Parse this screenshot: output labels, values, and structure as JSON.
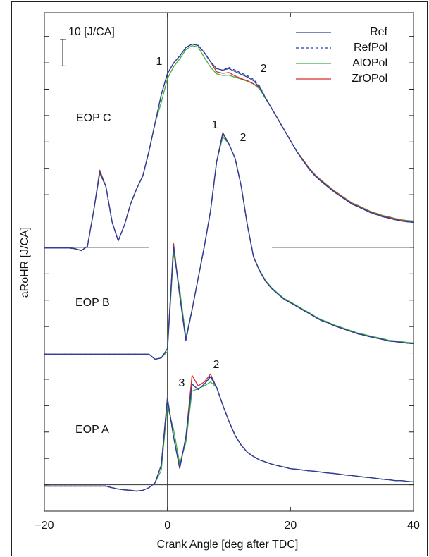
{
  "chart_data": {
    "type": "line",
    "xlabel": "Crank Angle [deg after TDC]",
    "ylabel": "aRoHR [J/CA]",
    "xlim": [
      -20,
      40
    ],
    "ylim": [
      -10,
      179
    ],
    "xticks": [
      {
        "value": -20,
        "label": "−20"
      },
      0,
      20,
      40
    ],
    "yticks": [
      0,
      10,
      20,
      30,
      40,
      50,
      60,
      70,
      80,
      90,
      100,
      110,
      120,
      130,
      140,
      150,
      160,
      170
    ],
    "legend": "upper right",
    "scale_bar": {
      "value": 10,
      "label": "10 [J/CA]"
    },
    "vlines": [
      0
    ],
    "hlines": [
      {
        "y": 90,
        "segments": [
          [
            -20,
            -3
          ],
          [
            17,
            40
          ]
        ]
      },
      {
        "y": 50,
        "segments": [
          [
            -20,
            40
          ]
        ]
      },
      {
        "y": 0,
        "segments": [
          [
            -20,
            40
          ]
        ]
      }
    ],
    "x": [
      -20,
      -19,
      -18,
      -17,
      -16,
      -15,
      -14,
      -13,
      -12,
      -11,
      -10,
      -9,
      -8,
      -7,
      -6,
      -5,
      -4,
      -3,
      -2,
      -1,
      0,
      1,
      2,
      3,
      4,
      5,
      6,
      7,
      8,
      9,
      10,
      11,
      12,
      13,
      14,
      15,
      16,
      17,
      18,
      19,
      20,
      21,
      22,
      23,
      24,
      25,
      26,
      27,
      28,
      29,
      30,
      31,
      32,
      33,
      34,
      35,
      36,
      37,
      38,
      39,
      40
    ],
    "series": [
      {
        "name": "Ref",
        "color": "#2b3f9e",
        "dashed": false
      },
      {
        "name": "RefPol",
        "color": "#2b3f9e",
        "dashed": true
      },
      {
        "name": "AlOPol",
        "color": "#3cb043",
        "dashed": false
      },
      {
        "name": "ZrOPol",
        "color": "#d62c2c",
        "dashed": false
      }
    ],
    "panels": [
      {
        "label": "EOP C",
        "annotations": [
          "1",
          "2"
        ],
        "values": [
          [
            89.8,
            89.8,
            89.8,
            89.8,
            89.8,
            89.5,
            88.8,
            90.4,
            103.7,
            118.5,
            113.1,
            99.7,
            92.5,
            98.4,
            106.4,
            112.3,
            117.1,
            126.5,
            137.2,
            147.9,
            155.9,
            159.9,
            162.6,
            165.8,
            167.1,
            166.6,
            163.9,
            160.4,
            157.8,
            157.2,
            157.8,
            156.7,
            155.6,
            154.6,
            153.2,
            150.6,
            146.5,
            142.5,
            138.5,
            134.5,
            130.5,
            126.5,
            123.0,
            119.8,
            117.1,
            115.0,
            113.1,
            111.2,
            109.6,
            108.0,
            106.4,
            105.4,
            104.3,
            103.2,
            102.4,
            101.6,
            101.1,
            100.5,
            100.0,
            99.7,
            99.5
          ],
          [
            89.8,
            89.8,
            89.8,
            89.8,
            89.8,
            89.5,
            88.8,
            90.4,
            103.7,
            118.5,
            113.1,
            99.7,
            92.5,
            98.4,
            106.4,
            112.3,
            117.1,
            126.5,
            137.2,
            147.9,
            155.9,
            159.9,
            162.6,
            165.8,
            167.1,
            166.6,
            163.9,
            160.4,
            157.8,
            157.2,
            158.3,
            157.2,
            156.1,
            155.1,
            153.7,
            151.1,
            146.5,
            142.5,
            138.5,
            134.5,
            130.5,
            126.5,
            123.0,
            119.8,
            117.1,
            115.0,
            113.1,
            111.2,
            109.6,
            108.0,
            106.4,
            105.4,
            104.3,
            103.2,
            102.4,
            101.6,
            101.1,
            100.5,
            100.0,
            99.7,
            99.5
          ],
          [
            89.8,
            89.8,
            89.8,
            89.8,
            89.8,
            89.5,
            88.8,
            90.4,
            103.7,
            118.0,
            113.1,
            99.7,
            92.5,
            98.4,
            106.4,
            112.3,
            117.1,
            126.5,
            137.2,
            145.0,
            154.0,
            158.5,
            161.5,
            165.0,
            166.5,
            166.0,
            162.0,
            158.4,
            155.8,
            155.2,
            155.3,
            154.5,
            153.8,
            153.0,
            152.0,
            150.0,
            146.2,
            142.5,
            138.5,
            134.5,
            130.5,
            126.5,
            123.5,
            120.3,
            117.6,
            115.5,
            113.6,
            111.7,
            110.1,
            108.5,
            106.9,
            105.9,
            104.8,
            103.7,
            102.9,
            102.1,
            101.6,
            101.0,
            100.5,
            100.2,
            100.0
          ],
          [
            89.8,
            89.8,
            89.8,
            89.8,
            89.8,
            89.5,
            88.8,
            90.4,
            103.7,
            119.3,
            113.1,
            99.7,
            92.5,
            98.4,
            106.4,
            112.3,
            117.1,
            126.5,
            137.2,
            147.9,
            155.9,
            159.9,
            162.6,
            165.8,
            167.1,
            166.6,
            163.9,
            160.4,
            156.6,
            156.0,
            156.3,
            155.0,
            154.0,
            153.2,
            152.0,
            150.6,
            146.5,
            142.5,
            138.5,
            134.5,
            130.5,
            126.5,
            123.3,
            120.1,
            117.4,
            115.3,
            113.4,
            111.5,
            109.9,
            108.3,
            106.7,
            105.7,
            104.6,
            103.5,
            102.7,
            101.9,
            101.4,
            100.8,
            100.3,
            100.0,
            99.8
          ]
        ]
      },
      {
        "label": "EOP B",
        "annotations": [
          "1",
          "2"
        ],
        "values": [
          [
            49.5,
            49.5,
            49.5,
            49.5,
            49.5,
            49.5,
            49.5,
            49.5,
            49.5,
            49.5,
            49.5,
            49.5,
            49.5,
            49.5,
            49.5,
            49.5,
            49.5,
            49.5,
            47.6,
            48.1,
            51.6,
            90.4,
            71.7,
            54.8,
            66.3,
            78.4,
            90.4,
            103.7,
            122.5,
            133.2,
            129.2,
            123.8,
            113.1,
            98.4,
            86.4,
            81.0,
            77.0,
            74.3,
            72.2,
            70.3,
            69.0,
            67.7,
            66.3,
            65.0,
            63.6,
            62.3,
            61.5,
            60.4,
            59.6,
            58.8,
            58.0,
            57.2,
            56.7,
            56.1,
            55.6,
            55.1,
            54.5,
            54.3,
            54.0,
            53.7,
            53.5
          ],
          [
            49.5,
            49.5,
            49.5,
            49.5,
            49.5,
            49.5,
            49.5,
            49.5,
            49.5,
            49.5,
            49.5,
            49.5,
            49.5,
            49.5,
            49.5,
            49.5,
            49.5,
            49.5,
            47.6,
            48.1,
            51.6,
            90.4,
            71.7,
            54.8,
            66.3,
            78.4,
            90.4,
            103.7,
            122.5,
            133.2,
            129.2,
            123.8,
            113.1,
            98.4,
            86.4,
            81.0,
            77.0,
            74.3,
            72.2,
            70.3,
            69.0,
            67.7,
            66.3,
            65.0,
            63.6,
            62.3,
            61.5,
            60.4,
            59.6,
            58.8,
            58.0,
            57.2,
            56.7,
            56.1,
            55.6,
            55.1,
            54.5,
            54.3,
            54.0,
            53.7,
            53.5
          ],
          [
            49.5,
            49.5,
            49.5,
            49.5,
            49.5,
            49.5,
            49.5,
            49.5,
            49.5,
            49.5,
            49.5,
            49.5,
            49.5,
            49.5,
            49.5,
            49.5,
            49.5,
            49.5,
            47.6,
            48.1,
            50.5,
            88.0,
            74.0,
            56.0,
            66.3,
            78.4,
            90.4,
            103.7,
            122.5,
            132.0,
            129.2,
            123.8,
            113.1,
            98.4,
            86.4,
            81.3,
            77.3,
            74.6,
            72.5,
            70.6,
            69.3,
            68.0,
            66.6,
            65.3,
            63.9,
            62.6,
            61.8,
            60.7,
            59.9,
            59.1,
            58.3,
            57.5,
            57.0,
            56.4,
            55.9,
            55.4,
            54.8,
            54.6,
            54.3,
            54.0,
            53.8
          ],
          [
            49.5,
            49.5,
            49.5,
            49.5,
            49.5,
            49.5,
            49.5,
            49.5,
            49.5,
            49.5,
            49.5,
            49.5,
            49.5,
            49.5,
            49.5,
            49.5,
            49.5,
            49.5,
            47.6,
            48.1,
            51.6,
            91.5,
            71.7,
            54.8,
            66.3,
            78.4,
            90.4,
            103.7,
            122.5,
            133.6,
            129.2,
            123.8,
            113.1,
            98.4,
            86.4,
            81.0,
            77.0,
            74.3,
            72.2,
            70.3,
            69.0,
            67.7,
            66.3,
            65.0,
            63.6,
            62.3,
            61.5,
            60.4,
            59.6,
            58.8,
            58.0,
            57.2,
            56.7,
            56.1,
            55.6,
            55.1,
            54.5,
            54.3,
            54.0,
            53.7,
            53.5
          ]
        ]
      },
      {
        "label": "EOP A",
        "annotations": [
          "3",
          "2"
        ],
        "values": [
          [
            -0.5,
            -0.5,
            -0.5,
            -0.5,
            -0.5,
            -0.5,
            -0.5,
            -0.5,
            -0.5,
            -0.5,
            -0.5,
            -1.1,
            -1.6,
            -1.9,
            -2.1,
            -2.4,
            -2.1,
            -1.1,
            0.8,
            7.5,
            32.9,
            18.2,
            6.2,
            18.2,
            38.2,
            36.1,
            38.2,
            40.9,
            36.9,
            30.2,
            24.1,
            18.7,
            15.0,
            12.3,
            10.7,
            9.4,
            8.6,
            7.8,
            7.2,
            6.7,
            6.1,
            5.9,
            5.6,
            5.3,
            5.1,
            4.8,
            4.5,
            4.3,
            4.0,
            3.7,
            3.5,
            3.2,
            2.9,
            2.7,
            2.4,
            2.1,
            1.9,
            1.6,
            1.6,
            1.3,
            1.1
          ],
          [
            -0.5,
            -0.5,
            -0.5,
            -0.5,
            -0.5,
            -0.5,
            -0.5,
            -0.5,
            -0.5,
            -0.5,
            -0.5,
            -1.1,
            -1.6,
            -1.9,
            -2.1,
            -2.4,
            -2.1,
            -1.1,
            0.8,
            7.5,
            32.9,
            18.2,
            6.2,
            18.2,
            38.2,
            36.1,
            38.2,
            41.5,
            36.9,
            30.2,
            24.1,
            18.7,
            15.0,
            12.3,
            10.7,
            9.4,
            8.6,
            7.8,
            7.2,
            6.7,
            6.1,
            5.9,
            5.6,
            5.3,
            5.1,
            4.8,
            4.5,
            4.3,
            4.0,
            3.7,
            3.5,
            3.2,
            2.9,
            2.7,
            2.4,
            2.1,
            1.9,
            1.6,
            1.6,
            1.3,
            1.1
          ],
          [
            -0.5,
            -0.5,
            -0.5,
            -0.5,
            -0.5,
            -0.5,
            -0.5,
            -0.5,
            -0.5,
            -0.5,
            -0.5,
            -1.1,
            -1.6,
            -1.9,
            -2.1,
            -2.4,
            -2.1,
            -1.1,
            0.8,
            5.5,
            30.0,
            21.0,
            8.0,
            16.0,
            35.5,
            36.5,
            37.5,
            39.0,
            36.9,
            30.2,
            24.1,
            18.7,
            15.0,
            12.3,
            10.7,
            9.4,
            8.6,
            7.8,
            7.2,
            6.7,
            6.1,
            5.9,
            5.6,
            5.3,
            5.1,
            4.8,
            4.5,
            4.3,
            4.0,
            3.7,
            3.5,
            3.2,
            2.9,
            2.7,
            2.4,
            2.1,
            1.9,
            1.6,
            1.6,
            1.3,
            1.1
          ],
          [
            -0.5,
            -0.5,
            -0.5,
            -0.5,
            -0.5,
            -0.5,
            -0.5,
            -0.5,
            -0.5,
            -0.5,
            -0.5,
            -1.1,
            -1.6,
            -1.9,
            -2.1,
            -2.4,
            -2.1,
            -1.1,
            0.8,
            7.5,
            32.9,
            18.2,
            6.2,
            18.2,
            41.5,
            37.5,
            39.0,
            42.0,
            36.9,
            30.2,
            24.1,
            18.7,
            15.0,
            12.3,
            10.7,
            9.4,
            8.6,
            7.8,
            7.2,
            6.7,
            6.1,
            5.9,
            5.6,
            5.3,
            5.1,
            4.8,
            4.5,
            4.3,
            4.0,
            3.7,
            3.5,
            3.2,
            2.9,
            2.7,
            2.4,
            2.1,
            1.9,
            1.6,
            1.6,
            1.3,
            1.1
          ]
        ]
      }
    ]
  }
}
